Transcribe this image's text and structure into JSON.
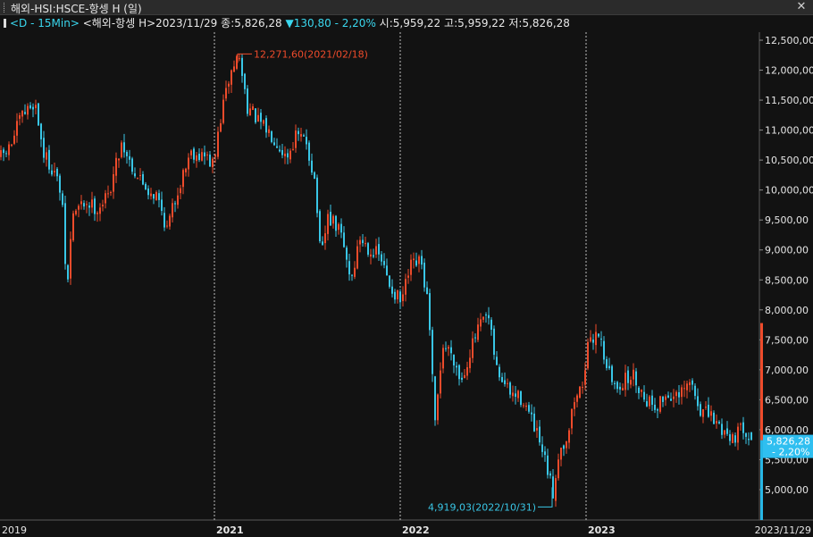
{
  "window": {
    "title": "해외-HSI:HSCE-항셍 H (일)",
    "close_icon": "close-icon"
  },
  "infobar": {
    "period": "<D - 15Min>",
    "symbol": "<해외-항셍 H>",
    "date": "2023/11/29",
    "close": "종:5,826,28",
    "change_icon": "down-triangle-icon",
    "change": "130,80",
    "change_pct": "- 2,20%",
    "open": "시:5,959,22",
    "high": "고:5,959,22",
    "low": "저:5,826,28"
  },
  "colors": {
    "up": "#ee4b2b",
    "down": "#39c6e6",
    "background": "#121212",
    "axis_text": "#e6e6e6"
  },
  "chart_data": {
    "type": "candlestick",
    "x_labels": [
      "2019",
      "2021",
      "2022",
      "2023",
      "2023/11/29"
    ],
    "y_ticks": [
      5000,
      5500,
      6000,
      6500,
      7000,
      7500,
      8000,
      8500,
      9000,
      9500,
      10000,
      10500,
      11000,
      11500,
      12000,
      12500
    ],
    "y_tick_labels": [
      "5,000,00",
      "5,500,00",
      "6,000,00",
      "6,500,00",
      "7,000,00",
      "7,500,00",
      "8,000,00",
      "8,500,00",
      "9,000,00",
      "9,500,00",
      "10,000,00",
      "10,500,00",
      "11,000,00",
      "11,500,00",
      "12,000,00",
      "12,500,00"
    ],
    "ylim": [
      4560,
      13170
    ],
    "max_annotation": {
      "text": "12,271,60(2021/02/18)",
      "value": 12271.6
    },
    "min_annotation": {
      "text": "4,919,03(2022/10/31)",
      "value": 4919.03
    },
    "last_price": {
      "price": "5,826,28",
      "change": "- 2,20%",
      "value": 5826.28
    },
    "anchors": [
      [
        0,
        10550
      ],
      [
        10,
        10700
      ],
      [
        22,
        11200
      ],
      [
        38,
        11480
      ],
      [
        48,
        10600
      ],
      [
        60,
        10300
      ],
      [
        68,
        9900
      ],
      [
        74,
        8250
      ],
      [
        80,
        9600
      ],
      [
        95,
        9800
      ],
      [
        108,
        9700
      ],
      [
        120,
        9900
      ],
      [
        135,
        10800
      ],
      [
        150,
        10300
      ],
      [
        165,
        10000
      ],
      [
        175,
        9900
      ],
      [
        186,
        9350
      ],
      [
        198,
        10000
      ],
      [
        212,
        10650
      ],
      [
        230,
        10550
      ],
      [
        238,
        10400
      ],
      [
        246,
        11200
      ],
      [
        256,
        11900
      ],
      [
        266,
        12271.6
      ],
      [
        276,
        11400
      ],
      [
        290,
        11100
      ],
      [
        305,
        10900
      ],
      [
        320,
        10550
      ],
      [
        330,
        10900
      ],
      [
        342,
        10800
      ],
      [
        352,
        10100
      ],
      [
        358,
        8800
      ],
      [
        366,
        9550
      ],
      [
        380,
        9300
      ],
      [
        392,
        8500
      ],
      [
        402,
        9200
      ],
      [
        414,
        9000
      ],
      [
        424,
        8900
      ],
      [
        434,
        8450
      ],
      [
        448,
        8100
      ],
      [
        458,
        8700
      ],
      [
        470,
        8800
      ],
      [
        478,
        8100
      ],
      [
        486,
        6050
      ],
      [
        494,
        7400
      ],
      [
        505,
        7300
      ],
      [
        515,
        6800
      ],
      [
        525,
        7300
      ],
      [
        535,
        7700
      ],
      [
        545,
        7900
      ],
      [
        555,
        7000
      ],
      [
        570,
        6600
      ],
      [
        585,
        6500
      ],
      [
        600,
        5900
      ],
      [
        612,
        5300
      ],
      [
        618,
        4919.03
      ],
      [
        624,
        5600
      ],
      [
        634,
        5900
      ],
      [
        642,
        6500
      ],
      [
        650,
        6700
      ],
      [
        656,
        7300
      ],
      [
        662,
        7500
      ],
      [
        668,
        7700
      ],
      [
        676,
        7200
      ],
      [
        686,
        6700
      ],
      [
        696,
        6800
      ],
      [
        708,
        6900
      ],
      [
        720,
        6550
      ],
      [
        734,
        6400
      ],
      [
        746,
        6600
      ],
      [
        758,
        6500
      ],
      [
        772,
        6800
      ],
      [
        782,
        6350
      ],
      [
        795,
        6200
      ],
      [
        808,
        6000
      ],
      [
        820,
        5880
      ],
      [
        832,
        6050
      ],
      [
        842,
        5826.28
      ]
    ]
  }
}
